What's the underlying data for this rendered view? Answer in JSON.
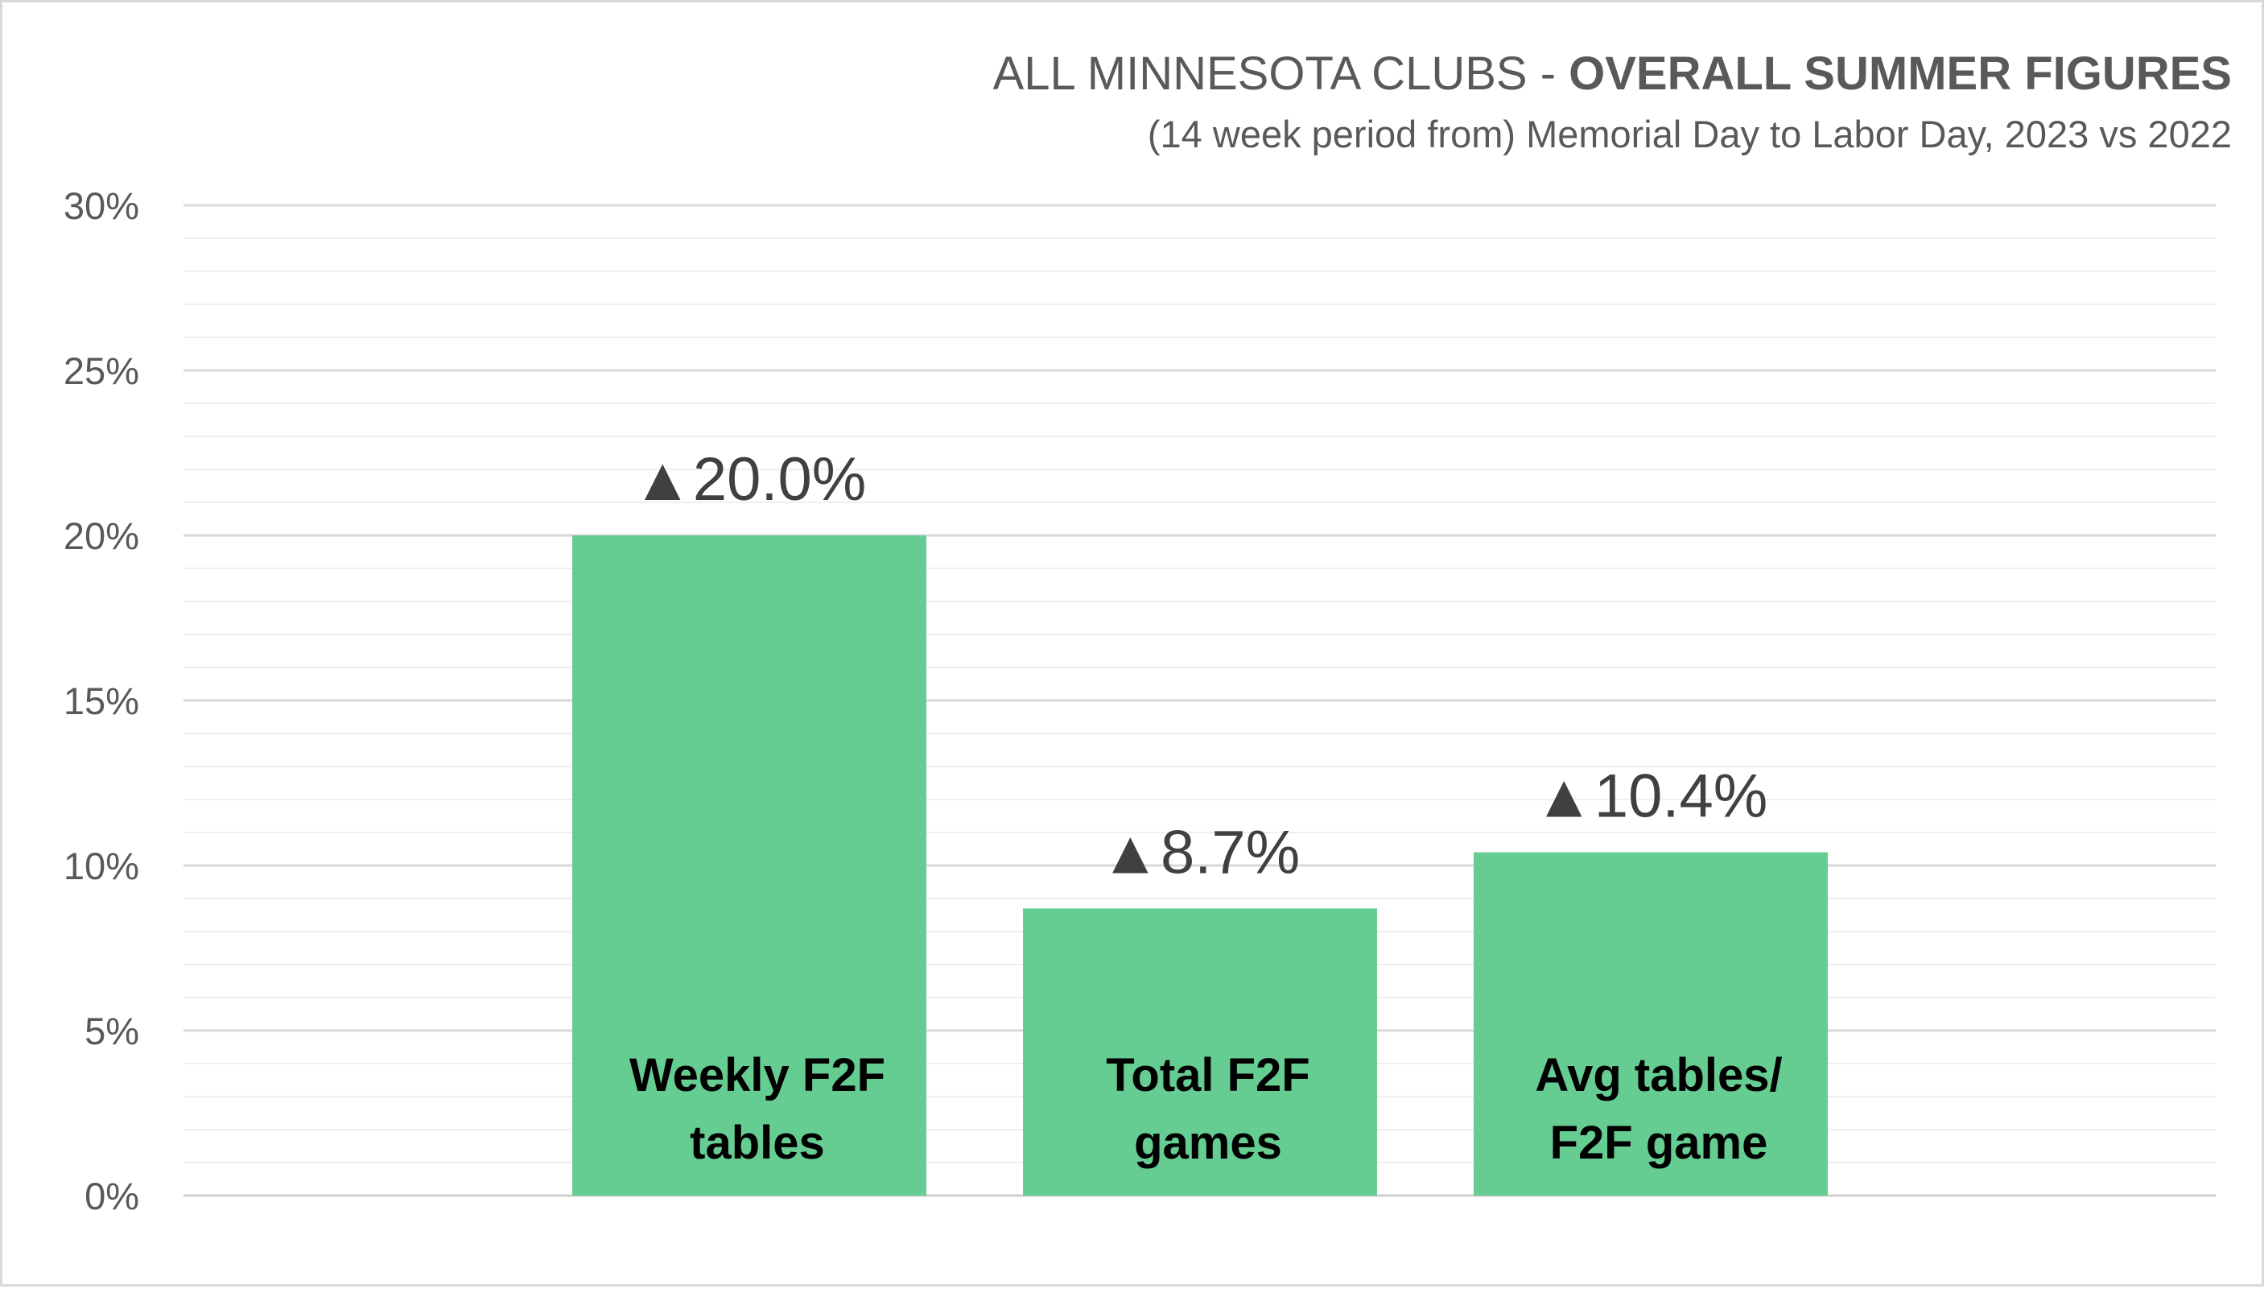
{
  "chart_data": {
    "type": "bar",
    "title_prefix": "ALL MINNESOTA CLUBS - ",
    "title_emphasis": "OVERALL SUMMER FIGURES",
    "subtitle": "(14 week period from) Memorial Day to Labor Day, 2023 vs 2022",
    "xlabel": "",
    "ylabel": "",
    "ylim": [
      0,
      30
    ],
    "y_ticks": [
      {
        "value": 0,
        "label": "0%"
      },
      {
        "value": 5,
        "label": "5%"
      },
      {
        "value": 10,
        "label": "10%"
      },
      {
        "value": 15,
        "label": "15%"
      },
      {
        "value": 20,
        "label": "20%"
      },
      {
        "value": 25,
        "label": "25%"
      },
      {
        "value": 30,
        "label": "30%"
      }
    ],
    "grid": true,
    "minor_grid": true,
    "legend": "none",
    "bar_color": "#66cd92",
    "bars": [
      {
        "category_lines": [
          "Weekly F2F",
          "tables"
        ],
        "value": 20.0,
        "label": "▲20.0%"
      },
      {
        "category_lines": [
          "Total F2F",
          "games"
        ],
        "value": 8.7,
        "label": "▲8.7%"
      },
      {
        "category_lines": [
          "Avg tables/",
          "F2F game"
        ],
        "value": 10.4,
        "label": "▲10.4%"
      }
    ]
  }
}
